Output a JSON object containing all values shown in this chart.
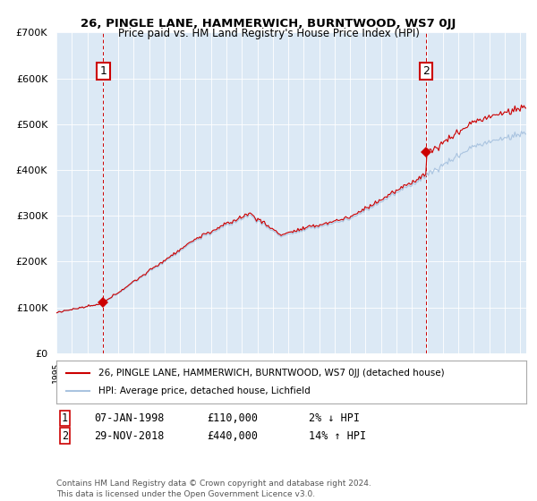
{
  "title": "26, PINGLE LANE, HAMMERWICH, BURNTWOOD, WS7 0JJ",
  "subtitle": "Price paid vs. HM Land Registry's House Price Index (HPI)",
  "ylim": [
    0,
    700000
  ],
  "yticks": [
    0,
    100000,
    200000,
    300000,
    400000,
    500000,
    600000,
    700000
  ],
  "ytick_labels": [
    "£0",
    "£100K",
    "£200K",
    "£300K",
    "£400K",
    "£500K",
    "£600K",
    "£700K"
  ],
  "hpi_color": "#aac4e0",
  "sale_color": "#cc0000",
  "dashed_color": "#cc0000",
  "bg_color": "#ffffff",
  "plot_bg_color": "#dce9f5",
  "grid_color": "#ffffff",
  "legend_label_sale": "26, PINGLE LANE, HAMMERWICH, BURNTWOOD, WS7 0JJ (detached house)",
  "legend_label_hpi": "HPI: Average price, detached house, Lichfield",
  "annotation1_date": "07-JAN-1998",
  "annotation1_price": "£110,000",
  "annotation1_hpi": "2% ↓ HPI",
  "annotation2_date": "29-NOV-2018",
  "annotation2_price": "£440,000",
  "annotation2_hpi": "14% ↑ HPI",
  "footer": "Contains HM Land Registry data © Crown copyright and database right 2024.\nThis data is licensed under the Open Government Licence v3.0.",
  "sale1_x": 1998.04,
  "sale1_y": 110000,
  "sale2_x": 2018.92,
  "sale2_y": 440000,
  "vline1_x": 1998.04,
  "vline2_x": 2018.92,
  "xmin": 1995.3,
  "xmax": 2025.4
}
